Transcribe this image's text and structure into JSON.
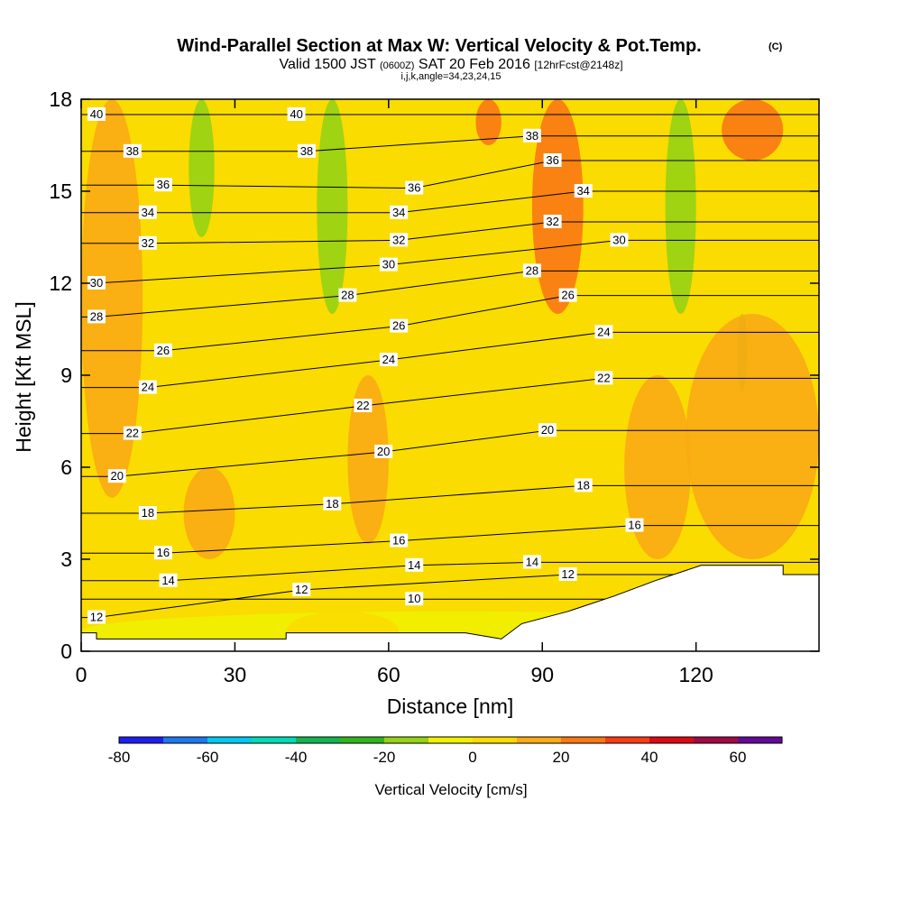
{
  "chart_data": {
    "type": "contour",
    "title": "Wind-Parallel Section at Max W: Vertical Velocity & Pot.Temp.",
    "title_mark": "(C)",
    "subtitle": {
      "prefix": "Valid 1500 JST",
      "utc": "(0600Z)",
      "date": "SAT 20 Feb 2016",
      "forecast": "[12hrFcst@2148z]"
    },
    "subtitle2": "i,j,k,angle=34,23,24,15",
    "xlabel": "Distance [nm]",
    "ylabel": "Height [Kft MSL]",
    "xlim": [
      0,
      144
    ],
    "ylim": [
      0,
      18
    ],
    "xticks": [
      0,
      30,
      60,
      90,
      120
    ],
    "yticks": [
      0,
      3,
      6,
      9,
      12,
      15,
      18
    ],
    "grid": false,
    "colorbar": {
      "label": "Vertical Velocity [cm/s]",
      "ticks": [
        -80,
        -60,
        -40,
        -20,
        0,
        20,
        40,
        60
      ],
      "levels": [
        -80,
        -70,
        -60,
        -50,
        -40,
        -30,
        -20,
        -10,
        0,
        10,
        20,
        30,
        40,
        50,
        60,
        70
      ],
      "colors": [
        "#1e1ef0",
        "#1e78f0",
        "#00c8f0",
        "#00dcb4",
        "#14b450",
        "#32b41e",
        "#96d214",
        "#f0f000",
        "#fadc00",
        "#faaa14",
        "#fa7814",
        "#fa3c14",
        "#dc0a14",
        "#a00a46",
        "#640a96"
      ]
    },
    "theta_contour_labels": [
      {
        "x": 3,
        "y": 17.5,
        "value": 40
      },
      {
        "x": 10,
        "y": 16.3,
        "value": 38
      },
      {
        "x": 16,
        "y": 15.2,
        "value": 36
      },
      {
        "x": 13,
        "y": 14.3,
        "value": 34
      },
      {
        "x": 13,
        "y": 13.3,
        "value": 32
      },
      {
        "x": 3,
        "y": 12.0,
        "value": 30
      },
      {
        "x": 3,
        "y": 10.9,
        "value": 28
      },
      {
        "x": 16,
        "y": 9.8,
        "value": 26
      },
      {
        "x": 13,
        "y": 8.6,
        "value": 24
      },
      {
        "x": 10,
        "y": 7.1,
        "value": 22
      },
      {
        "x": 7,
        "y": 5.7,
        "value": 20
      },
      {
        "x": 13,
        "y": 4.5,
        "value": 18
      },
      {
        "x": 16,
        "y": 3.2,
        "value": 16
      },
      {
        "x": 17,
        "y": 2.3,
        "value": 14
      },
      {
        "x": 3,
        "y": 1.1,
        "value": 12
      },
      {
        "x": 42,
        "y": 17.5,
        "value": 40
      },
      {
        "x": 44,
        "y": 16.3,
        "value": 38
      },
      {
        "x": 65,
        "y": 15.1,
        "value": 36
      },
      {
        "x": 62,
        "y": 14.3,
        "value": 34
      },
      {
        "x": 62,
        "y": 13.4,
        "value": 32
      },
      {
        "x": 60,
        "y": 12.6,
        "value": 30
      },
      {
        "x": 52,
        "y": 11.6,
        "value": 28
      },
      {
        "x": 62,
        "y": 10.6,
        "value": 26
      },
      {
        "x": 60,
        "y": 9.5,
        "value": 24
      },
      {
        "x": 55,
        "y": 8.0,
        "value": 22
      },
      {
        "x": 59,
        "y": 6.5,
        "value": 20
      },
      {
        "x": 49,
        "y": 4.8,
        "value": 18
      },
      {
        "x": 62,
        "y": 3.6,
        "value": 16
      },
      {
        "x": 65,
        "y": 2.8,
        "value": 14
      },
      {
        "x": 43,
        "y": 2.0,
        "value": 12
      },
      {
        "x": 65,
        "y": 1.7,
        "value": 10
      },
      {
        "x": 88,
        "y": 16.8,
        "value": 38
      },
      {
        "x": 92,
        "y": 16.0,
        "value": 36
      },
      {
        "x": 98,
        "y": 15.0,
        "value": 34
      },
      {
        "x": 92,
        "y": 14.0,
        "value": 32
      },
      {
        "x": 105,
        "y": 13.4,
        "value": 30
      },
      {
        "x": 88,
        "y": 12.4,
        "value": 28
      },
      {
        "x": 95,
        "y": 11.6,
        "value": 26
      },
      {
        "x": 102,
        "y": 10.4,
        "value": 24
      },
      {
        "x": 102,
        "y": 8.9,
        "value": 22
      },
      {
        "x": 91,
        "y": 7.2,
        "value": 20
      },
      {
        "x": 98,
        "y": 5.4,
        "value": 18
      },
      {
        "x": 108,
        "y": 4.1,
        "value": 16
      },
      {
        "x": 88,
        "y": 2.9,
        "value": 14
      },
      {
        "x": 95,
        "y": 2.5,
        "value": 12
      }
    ]
  }
}
